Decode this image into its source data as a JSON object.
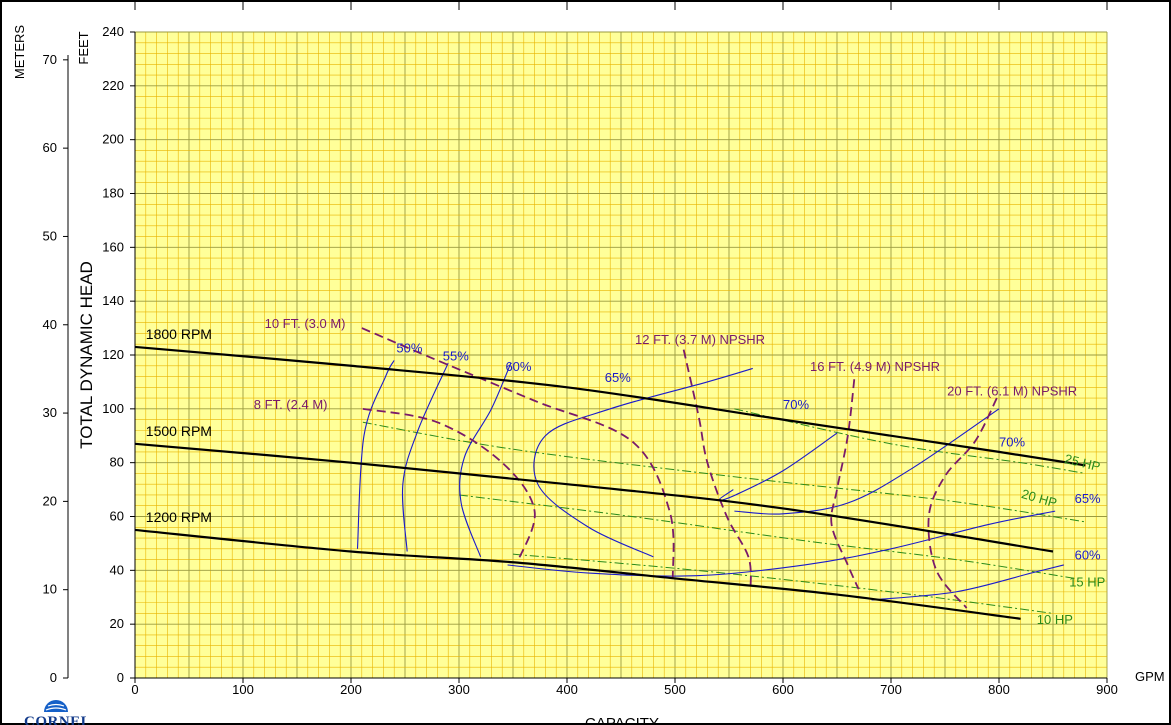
{
  "chart_data": {
    "type": "line",
    "xlabel": "CAPACITY",
    "x_unit": "GPM",
    "ylabel": "TOTAL DYNAMIC HEAD",
    "y_unit_primary": "FEET",
    "y_unit_secondary": "METERS",
    "xlim": [
      0,
      900
    ],
    "ylim": [
      0,
      240
    ],
    "x_ticks": [
      "0",
      "100",
      "200",
      "300",
      "400",
      "500",
      "600",
      "700",
      "800",
      "900"
    ],
    "y_ticks": [
      "0",
      "20",
      "40",
      "60",
      "80",
      "100",
      "120",
      "140",
      "160",
      "180",
      "200",
      "220",
      "240"
    ],
    "y_meter_ticks": [
      "0",
      "10",
      "20",
      "30",
      "40",
      "50",
      "60",
      "70"
    ],
    "grid": true,
    "background_color": "#ffff99",
    "grid_color": "#e8b400",
    "colors": {
      "rpm": "#000000",
      "efficiency": "#1a1acc",
      "npshr": "#7a1a6a",
      "hp": "#2a8a1a"
    },
    "rpm_curves": [
      {
        "name": "1800 RPM",
        "points": [
          [
            0,
            123
          ],
          [
            200,
            116
          ],
          [
            400,
            108
          ],
          [
            600,
            96
          ],
          [
            800,
            84
          ],
          [
            880,
            79
          ]
        ]
      },
      {
        "name": "1500 RPM",
        "points": [
          [
            0,
            87
          ],
          [
            200,
            80
          ],
          [
            400,
            72
          ],
          [
            600,
            63
          ],
          [
            850,
            47
          ]
        ]
      },
      {
        "name": "1200 RPM",
        "points": [
          [
            0,
            55
          ],
          [
            200,
            47
          ],
          [
            350,
            43
          ],
          [
            500,
            37
          ],
          [
            650,
            31
          ],
          [
            820,
            22
          ]
        ]
      }
    ],
    "efficiency_curves": [
      {
        "name": "50%",
        "points": [
          [
            206,
            48
          ],
          [
            212,
            90
          ],
          [
            232,
            112
          ],
          [
            240,
            118
          ]
        ]
      },
      {
        "name": "55%",
        "points": [
          [
            252,
            47
          ],
          [
            248,
            72
          ],
          [
            262,
            92
          ],
          [
            290,
            117
          ]
        ]
      },
      {
        "name": "60%",
        "points": [
          [
            320,
            45
          ],
          [
            302,
            65
          ],
          [
            305,
            82
          ],
          [
            330,
            100
          ],
          [
            348,
            117
          ]
        ]
      },
      {
        "name": "65%",
        "points": [
          [
            345,
            42
          ],
          [
            420,
            39
          ],
          [
            520,
            38
          ],
          [
            620,
            42
          ],
          [
            700,
            48
          ],
          [
            790,
            57
          ],
          [
            852,
            62
          ]
        ]
      },
      {
        "name": "65% inner",
        "points": [
          [
            480,
            45
          ],
          [
            420,
            56
          ],
          [
            373,
            72
          ],
          [
            380,
            90
          ],
          [
            440,
            100
          ],
          [
            530,
            110
          ],
          [
            572,
            115
          ]
        ]
      },
      {
        "name": "70%",
        "points": [
          [
            555,
            62
          ],
          [
            600,
            61
          ],
          [
            660,
            65
          ],
          [
            720,
            78
          ],
          [
            800,
            100
          ]
        ]
      },
      {
        "name": "70% inner",
        "points": [
          [
            650,
            91
          ],
          [
            600,
            77
          ],
          [
            556,
            68
          ],
          [
            540,
            66
          ],
          [
            554,
            70
          ]
        ]
      },
      {
        "name": "60% right",
        "points": [
          [
            682,
            29
          ],
          [
            760,
            32
          ],
          [
            830,
            39
          ],
          [
            860,
            42
          ]
        ]
      }
    ],
    "npshr_curves": [
      {
        "name": "8 FT. (2.4 M)",
        "points": [
          [
            211,
            100
          ],
          [
            280,
            95
          ],
          [
            340,
            80
          ],
          [
            370,
            62
          ],
          [
            354,
            43
          ]
        ]
      },
      {
        "name": "10 FT. (3.0 M)",
        "points": [
          [
            210,
            130
          ],
          [
            280,
            118
          ],
          [
            370,
            103
          ],
          [
            460,
            88
          ],
          [
            495,
            62
          ],
          [
            498,
            37
          ]
        ]
      },
      {
        "name": "12 FT. (3.7 M) NPSHR",
        "points": [
          [
            508,
            122
          ],
          [
            522,
            97
          ],
          [
            530,
            80
          ],
          [
            548,
            60
          ],
          [
            568,
            45
          ],
          [
            570,
            33
          ]
        ]
      },
      {
        "name": "16 FT. (4.9 M) NPSHR",
        "points": [
          [
            666,
            111
          ],
          [
            660,
            90
          ],
          [
            650,
            70
          ],
          [
            645,
            57
          ],
          [
            660,
            42
          ],
          [
            670,
            33
          ]
        ]
      },
      {
        "name": "20 FT. (6.1 M) NPSHR",
        "points": [
          [
            798,
            104
          ],
          [
            778,
            88
          ],
          [
            750,
            75
          ],
          [
            735,
            60
          ],
          [
            742,
            40
          ],
          [
            770,
            26
          ]
        ]
      }
    ],
    "hp_curves": [
      {
        "name": "25 HP",
        "points": [
          [
            555,
            100
          ],
          [
            700,
            87
          ],
          [
            820,
            80
          ],
          [
            880,
            76
          ]
        ]
      },
      {
        "name": "20 HP",
        "points": [
          [
            211,
            95
          ],
          [
            350,
            85
          ],
          [
            550,
            75
          ],
          [
            750,
            66
          ],
          [
            880,
            58
          ]
        ]
      },
      {
        "name": "15 HP",
        "points": [
          [
            300,
            68
          ],
          [
            460,
            60
          ],
          [
            620,
            51
          ],
          [
            760,
            44
          ],
          [
            870,
            37
          ]
        ]
      },
      {
        "name": "10 HP",
        "points": [
          [
            350,
            46
          ],
          [
            520,
            40
          ],
          [
            700,
            32
          ],
          [
            850,
            24
          ]
        ]
      }
    ],
    "annotations": {
      "rpm": [
        "1800 RPM",
        "1500 RPM",
        "1200 RPM"
      ],
      "efficiency": [
        "50%",
        "55%",
        "60%",
        "65%",
        "70%",
        "70%",
        "65%",
        "60%"
      ],
      "npshr": [
        "10 FT. (3.0 M)",
        "8 FT. (2.4 M)",
        "12 FT. (3.7 M) NPSHR",
        "16 FT. (4.9 M) NPSHR",
        "20 FT. (6.1 M) NPSHR"
      ],
      "hp": [
        "25 HP",
        "20 HP",
        "15 HP",
        "10 HP"
      ]
    }
  },
  "logo": {
    "text": "CORNELL"
  }
}
